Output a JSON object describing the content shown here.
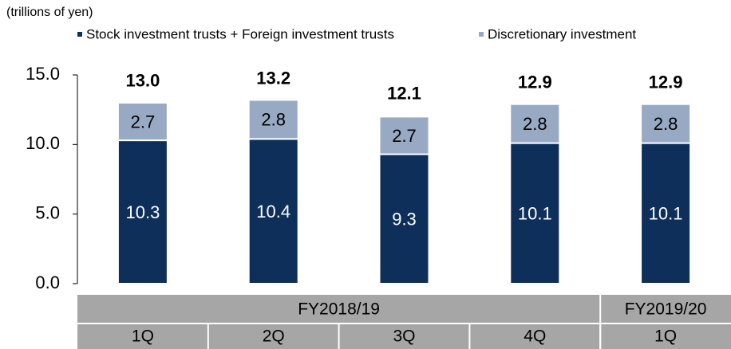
{
  "chart_data": {
    "type": "stacked_bar",
    "unit_label": "(trillions of yen)",
    "categories": [
      "1Q",
      "2Q",
      "3Q",
      "4Q",
      "1Q"
    ],
    "groups": [
      {
        "label": "FY2018/19",
        "count": 4
      },
      {
        "label": "FY2019/20",
        "count": 1
      }
    ],
    "series": [
      {
        "name": "Stock investment trusts + Foreign investment trusts",
        "color": "#0d2f5a",
        "label_color": "#ffffff",
        "values": [
          10.3,
          10.4,
          9.3,
          10.1,
          10.1
        ]
      },
      {
        "name": "Discretionary investment",
        "color": "#98a9c4",
        "label_color": "#000000",
        "values": [
          2.7,
          2.8,
          2.7,
          2.8,
          2.8
        ]
      }
    ],
    "totals": {
      "values": [
        13.0,
        13.2,
        12.1,
        12.9,
        12.9
      ],
      "value_labels": [
        "13.0",
        "13.2",
        "12.1",
        "12.9",
        "12.9"
      ]
    },
    "ylim": [
      0,
      15
    ],
    "yticks": [
      {
        "value": 0,
        "label": "0.0"
      },
      {
        "value": 5,
        "label": "5.0"
      },
      {
        "value": 10,
        "label": "10.0"
      },
      {
        "value": 15,
        "label": "15.0"
      }
    ],
    "legend": "top"
  }
}
